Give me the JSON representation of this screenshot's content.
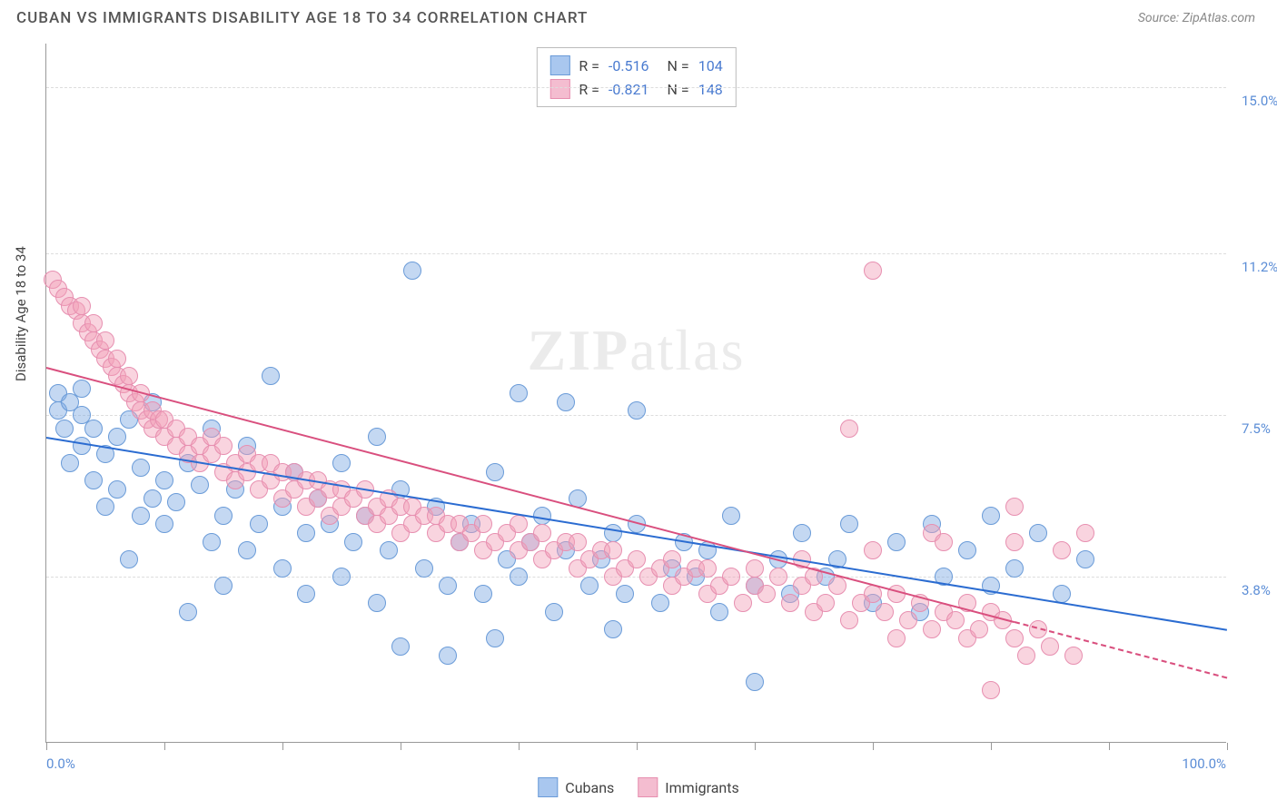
{
  "header": {
    "title": "CUBAN VS IMMIGRANTS DISABILITY AGE 18 TO 34 CORRELATION CHART",
    "source": "Source: ZipAtlas.com"
  },
  "chart": {
    "type": "scatter",
    "ylabel": "Disability Age 18 to 34",
    "xlim": [
      0,
      100
    ],
    "ylim": [
      0,
      16
    ],
    "x_axis_label_min": "0.0%",
    "x_axis_label_max": "100.0%",
    "y_ticks": [
      {
        "value": 3.8,
        "label": "3.8%"
      },
      {
        "value": 7.5,
        "label": "7.5%"
      },
      {
        "value": 11.2,
        "label": "11.2%"
      },
      {
        "value": 15.0,
        "label": "15.0%"
      }
    ],
    "x_tick_marks": [
      0,
      10,
      20,
      30,
      40,
      50,
      60,
      70,
      80,
      90,
      100
    ],
    "background_color": "#ffffff",
    "grid_color": "#dddddd",
    "axis_color": "#999999",
    "watermark": "ZIPatlas",
    "series": [
      {
        "name": "Cubans",
        "color_fill": "rgba(125,168,227,0.45)",
        "color_stroke": "#6a9bd8",
        "marker_radius": 10,
        "trend": {
          "x1": 0,
          "y1": 7.0,
          "x2": 100,
          "y2": 2.6,
          "solid_to_x": 100,
          "color": "#2b6cd1",
          "width": 2
        },
        "R": "-0.516",
        "N": "104",
        "points": [
          [
            1,
            8.0
          ],
          [
            1,
            7.6
          ],
          [
            1.5,
            7.2
          ],
          [
            2,
            7.8
          ],
          [
            2,
            6.4
          ],
          [
            3,
            7.5
          ],
          [
            3,
            6.8
          ],
          [
            3,
            8.1
          ],
          [
            4,
            6.0
          ],
          [
            4,
            7.2
          ],
          [
            5,
            6.6
          ],
          [
            5,
            5.4
          ],
          [
            6,
            7.0
          ],
          [
            6,
            5.8
          ],
          [
            7,
            7.4
          ],
          [
            7,
            4.2
          ],
          [
            8,
            5.2
          ],
          [
            8,
            6.3
          ],
          [
            9,
            5.6
          ],
          [
            9,
            7.8
          ],
          [
            10,
            6.0
          ],
          [
            10,
            5.0
          ],
          [
            11,
            5.5
          ],
          [
            12,
            6.4
          ],
          [
            12,
            3.0
          ],
          [
            13,
            5.9
          ],
          [
            14,
            4.6
          ],
          [
            14,
            7.2
          ],
          [
            15,
            5.2
          ],
          [
            15,
            3.6
          ],
          [
            16,
            5.8
          ],
          [
            17,
            6.8
          ],
          [
            17,
            4.4
          ],
          [
            18,
            5.0
          ],
          [
            19,
            8.4
          ],
          [
            20,
            5.4
          ],
          [
            20,
            4.0
          ],
          [
            21,
            6.2
          ],
          [
            22,
            4.8
          ],
          [
            22,
            3.4
          ],
          [
            23,
            5.6
          ],
          [
            24,
            5.0
          ],
          [
            25,
            3.8
          ],
          [
            25,
            6.4
          ],
          [
            26,
            4.6
          ],
          [
            27,
            5.2
          ],
          [
            28,
            3.2
          ],
          [
            28,
            7.0
          ],
          [
            29,
            4.4
          ],
          [
            30,
            5.8
          ],
          [
            30,
            2.2
          ],
          [
            31,
            10.8
          ],
          [
            32,
            4.0
          ],
          [
            33,
            5.4
          ],
          [
            34,
            3.6
          ],
          [
            34,
            2.0
          ],
          [
            35,
            4.6
          ],
          [
            36,
            5.0
          ],
          [
            37,
            3.4
          ],
          [
            38,
            6.2
          ],
          [
            38,
            2.4
          ],
          [
            39,
            4.2
          ],
          [
            40,
            8.0
          ],
          [
            40,
            3.8
          ],
          [
            41,
            4.6
          ],
          [
            42,
            5.2
          ],
          [
            43,
            3.0
          ],
          [
            44,
            4.4
          ],
          [
            44,
            7.8
          ],
          [
            45,
            5.6
          ],
          [
            46,
            3.6
          ],
          [
            47,
            4.2
          ],
          [
            48,
            4.8
          ],
          [
            48,
            2.6
          ],
          [
            49,
            3.4
          ],
          [
            50,
            5.0
          ],
          [
            50,
            7.6
          ],
          [
            52,
            3.2
          ],
          [
            53,
            4.0
          ],
          [
            54,
            4.6
          ],
          [
            55,
            3.8
          ],
          [
            56,
            4.4
          ],
          [
            57,
            3.0
          ],
          [
            58,
            5.2
          ],
          [
            60,
            3.6
          ],
          [
            60,
            1.4
          ],
          [
            62,
            4.2
          ],
          [
            63,
            3.4
          ],
          [
            64,
            4.8
          ],
          [
            66,
            3.8
          ],
          [
            67,
            4.2
          ],
          [
            68,
            5.0
          ],
          [
            70,
            3.2
          ],
          [
            72,
            4.6
          ],
          [
            74,
            3.0
          ],
          [
            75,
            5.0
          ],
          [
            76,
            3.8
          ],
          [
            78,
            4.4
          ],
          [
            80,
            3.6
          ],
          [
            80,
            5.2
          ],
          [
            82,
            4.0
          ],
          [
            84,
            4.8
          ],
          [
            86,
            3.4
          ],
          [
            88,
            4.2
          ]
        ]
      },
      {
        "name": "Immigrants",
        "color_fill": "rgba(242,160,185,0.45)",
        "color_stroke": "#e78fb0",
        "marker_radius": 10,
        "trend": {
          "x1": 0,
          "y1": 8.6,
          "x2": 100,
          "y2": 1.5,
          "solid_to_x": 82,
          "color": "#d94f7e",
          "width": 2
        },
        "R": "-0.821",
        "N": "148",
        "points": [
          [
            0.5,
            10.6
          ],
          [
            1,
            10.4
          ],
          [
            1.5,
            10.2
          ],
          [
            2,
            10.0
          ],
          [
            2.5,
            9.9
          ],
          [
            3,
            10.0
          ],
          [
            3,
            9.6
          ],
          [
            3.5,
            9.4
          ],
          [
            4,
            9.6
          ],
          [
            4,
            9.2
          ],
          [
            4.5,
            9.0
          ],
          [
            5,
            9.2
          ],
          [
            5,
            8.8
          ],
          [
            5.5,
            8.6
          ],
          [
            6,
            8.8
          ],
          [
            6,
            8.4
          ],
          [
            6.5,
            8.2
          ],
          [
            7,
            8.4
          ],
          [
            7,
            8.0
          ],
          [
            7.5,
            7.8
          ],
          [
            8,
            8.0
          ],
          [
            8,
            7.6
          ],
          [
            8.5,
            7.4
          ],
          [
            9,
            7.6
          ],
          [
            9,
            7.2
          ],
          [
            9.5,
            7.4
          ],
          [
            10,
            7.0
          ],
          [
            10,
            7.4
          ],
          [
            11,
            7.2
          ],
          [
            11,
            6.8
          ],
          [
            12,
            7.0
          ],
          [
            12,
            6.6
          ],
          [
            13,
            6.8
          ],
          [
            13,
            6.4
          ],
          [
            14,
            6.6
          ],
          [
            14,
            7.0
          ],
          [
            15,
            6.2
          ],
          [
            15,
            6.8
          ],
          [
            16,
            6.4
          ],
          [
            16,
            6.0
          ],
          [
            17,
            6.2
          ],
          [
            17,
            6.6
          ],
          [
            18,
            6.4
          ],
          [
            18,
            5.8
          ],
          [
            19,
            6.0
          ],
          [
            19,
            6.4
          ],
          [
            20,
            6.2
          ],
          [
            20,
            5.6
          ],
          [
            21,
            5.8
          ],
          [
            21,
            6.2
          ],
          [
            22,
            6.0
          ],
          [
            22,
            5.4
          ],
          [
            23,
            5.6
          ],
          [
            23,
            6.0
          ],
          [
            24,
            5.8
          ],
          [
            24,
            5.2
          ],
          [
            25,
            5.4
          ],
          [
            25,
            5.8
          ],
          [
            26,
            5.6
          ],
          [
            27,
            5.2
          ],
          [
            27,
            5.8
          ],
          [
            28,
            5.4
          ],
          [
            28,
            5.0
          ],
          [
            29,
            5.2
          ],
          [
            29,
            5.6
          ],
          [
            30,
            5.4
          ],
          [
            30,
            4.8
          ],
          [
            31,
            5.0
          ],
          [
            31,
            5.4
          ],
          [
            32,
            5.2
          ],
          [
            33,
            4.8
          ],
          [
            33,
            5.2
          ],
          [
            34,
            5.0
          ],
          [
            35,
            4.6
          ],
          [
            35,
            5.0
          ],
          [
            36,
            4.8
          ],
          [
            37,
            4.4
          ],
          [
            37,
            5.0
          ],
          [
            38,
            4.6
          ],
          [
            39,
            4.8
          ],
          [
            40,
            4.4
          ],
          [
            40,
            5.0
          ],
          [
            41,
            4.6
          ],
          [
            42,
            4.2
          ],
          [
            42,
            4.8
          ],
          [
            43,
            4.4
          ],
          [
            44,
            4.6
          ],
          [
            45,
            4.0
          ],
          [
            45,
            4.6
          ],
          [
            46,
            4.2
          ],
          [
            47,
            4.4
          ],
          [
            48,
            3.8
          ],
          [
            48,
            4.4
          ],
          [
            49,
            4.0
          ],
          [
            50,
            4.2
          ],
          [
            51,
            3.8
          ],
          [
            52,
            4.0
          ],
          [
            53,
            3.6
          ],
          [
            53,
            4.2
          ],
          [
            54,
            3.8
          ],
          [
            55,
            4.0
          ],
          [
            56,
            3.4
          ],
          [
            56,
            4.0
          ],
          [
            57,
            3.6
          ],
          [
            58,
            3.8
          ],
          [
            59,
            3.2
          ],
          [
            60,
            3.6
          ],
          [
            60,
            4.0
          ],
          [
            61,
            3.4
          ],
          [
            62,
            3.8
          ],
          [
            63,
            3.2
          ],
          [
            64,
            3.6
          ],
          [
            65,
            3.0
          ],
          [
            65,
            3.8
          ],
          [
            66,
            3.2
          ],
          [
            67,
            3.6
          ],
          [
            68,
            2.8
          ],
          [
            68,
            7.2
          ],
          [
            69,
            3.2
          ],
          [
            70,
            3.4
          ],
          [
            70,
            10.8
          ],
          [
            71,
            3.0
          ],
          [
            72,
            3.4
          ],
          [
            72,
            2.4
          ],
          [
            73,
            2.8
          ],
          [
            74,
            3.2
          ],
          [
            75,
            2.6
          ],
          [
            75,
            4.8
          ],
          [
            76,
            3.0
          ],
          [
            77,
            2.8
          ],
          [
            78,
            3.2
          ],
          [
            78,
            2.4
          ],
          [
            79,
            2.6
          ],
          [
            80,
            3.0
          ],
          [
            80,
            1.2
          ],
          [
            81,
            2.8
          ],
          [
            82,
            2.4
          ],
          [
            82,
            4.6
          ],
          [
            83,
            2.0
          ],
          [
            84,
            2.6
          ],
          [
            85,
            2.2
          ],
          [
            86,
            4.4
          ],
          [
            87,
            2.0
          ],
          [
            88,
            4.8
          ],
          [
            82,
            5.4
          ],
          [
            76,
            4.6
          ],
          [
            70,
            4.4
          ],
          [
            64,
            4.2
          ]
        ]
      }
    ],
    "swatch_blue_fill": "#a9c7ef",
    "swatch_blue_border": "#6a9bd8",
    "swatch_pink_fill": "#f4bdd0",
    "swatch_pink_border": "#e78fb0"
  },
  "bottom_legend": {
    "item1": "Cubans",
    "item2": "Immigrants"
  }
}
